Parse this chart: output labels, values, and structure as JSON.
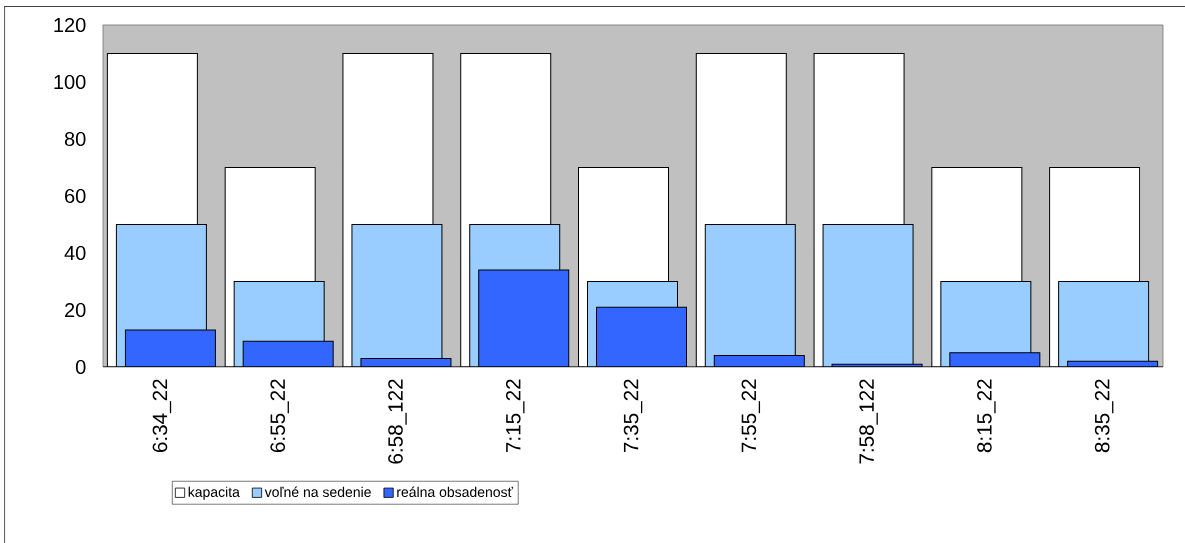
{
  "chart_data": {
    "type": "bar",
    "categories": [
      "6:34_22",
      "6:55_22",
      "6:58_122",
      "7:15_22",
      "7:35_22",
      "7:55_22",
      "7:58_122",
      "8:15_22",
      "8:35_22"
    ],
    "series": [
      {
        "name": "kapacita",
        "color": "#ffffff",
        "values": [
          110,
          70,
          110,
          110,
          70,
          110,
          110,
          70,
          70
        ]
      },
      {
        "name": "voľné na sedenie",
        "color": "#99ccff",
        "values": [
          50,
          30,
          50,
          50,
          30,
          50,
          50,
          30,
          30
        ]
      },
      {
        "name": "reálna obsadenosť",
        "color": "#3366ff",
        "values": [
          13,
          9,
          3,
          34,
          21,
          4,
          1,
          5,
          2
        ]
      }
    ],
    "ylim": [
      0,
      120
    ],
    "yticks": [
      0,
      20,
      40,
      60,
      80,
      100,
      120
    ],
    "legend": "bottom left"
  }
}
